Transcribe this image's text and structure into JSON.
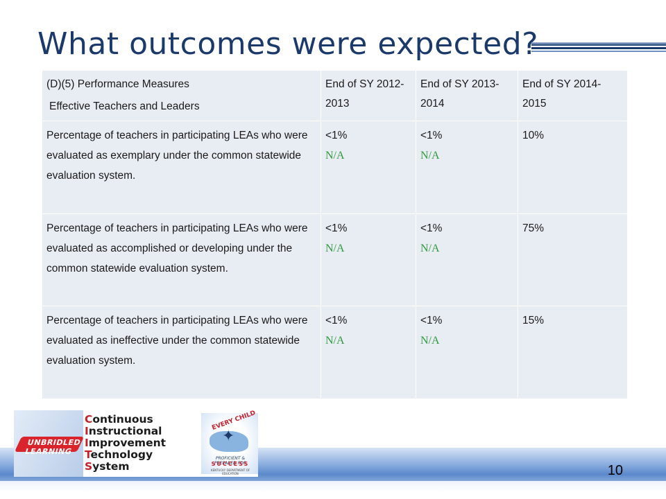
{
  "slide": {
    "title": "What outcomes were expected?",
    "page_number": "10"
  },
  "table": {
    "header": {
      "col1_line1": "(D)(5) Performance Measures",
      "col1_line2": "Effective Teachers and Leaders",
      "col2": "End of SY 2012-2013",
      "col3": "End of SY 2013-2014",
      "col4": "End of SY 2014-2015"
    },
    "rows": [
      {
        "measure": "Percentage of teachers in participating LEAs who were evaluated as exemplary under the common statewide evaluation system.",
        "sy2013_target": "<1%",
        "sy2013_actual": "N/A",
        "sy2014_target": "<1%",
        "sy2014_actual": "N/A",
        "sy2015_target": "10%"
      },
      {
        "measure": "Percentage of teachers in participating LEAs who were evaluated as accomplished or developing under the common statewide evaluation system.",
        "sy2013_target": "<1%",
        "sy2013_actual": "N/A",
        "sy2014_target": "<1%",
        "sy2014_actual": "N/A",
        "sy2015_target": "75%"
      },
      {
        "measure": "Percentage of teachers in participating LEAs who were evaluated as ineffective under the common statewide evaluation system.",
        "sy2013_target": "<1%",
        "sy2013_actual": "N/A",
        "sy2014_target": "<1%",
        "sy2014_actual": "N/A",
        "sy2015_target": "15%"
      }
    ]
  },
  "logo": {
    "left_mark": "UNBRIDLED LEARNING",
    "lines": [
      {
        "cap": "C",
        "rest": "ontinuous"
      },
      {
        "cap": "I",
        "rest": "nstructional"
      },
      {
        "cap": "I",
        "rest": "mprovement"
      },
      {
        "cap": "T",
        "rest": "echnology"
      },
      {
        "cap": "S",
        "rest": "ystem"
      }
    ],
    "badge_top": "EVERY CHILD",
    "badge_tagline": "PROFICIENT & PREPARED FOR",
    "badge_success": "SUCCESS",
    "badge_org": "KENTUCKY DEPARTMENT OF EDUCATION"
  },
  "colors": {
    "title": "#1b3a6b",
    "table_cell_bg": "#e8ecf3",
    "na_text": "#2e9a3c",
    "logo_accent": "#c4202a"
  }
}
